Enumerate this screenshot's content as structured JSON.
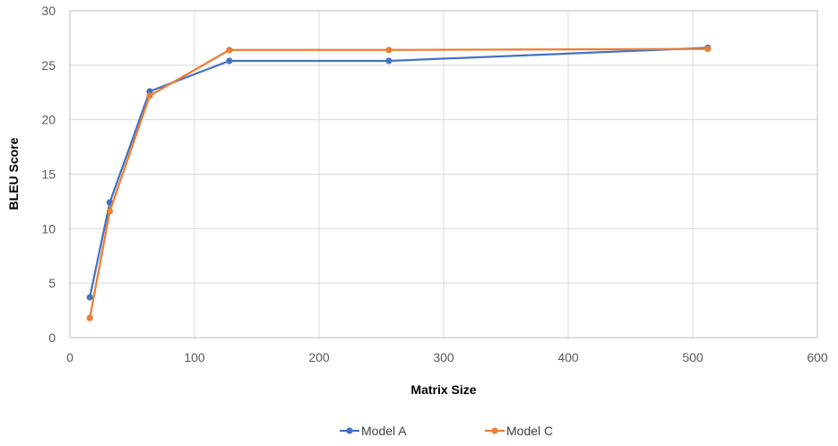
{
  "chart_data": {
    "type": "line",
    "title": "",
    "xlabel": "Matrix Size",
    "ylabel": "BLEU Score",
    "xlim": [
      0,
      600
    ],
    "ylim": [
      0,
      30
    ],
    "xticks": [
      0,
      100,
      200,
      300,
      400,
      500,
      600
    ],
    "yticks": [
      0,
      5,
      10,
      15,
      20,
      25,
      30
    ],
    "grid": true,
    "legend_position": "bottom",
    "series": [
      {
        "name": "Model A",
        "color": "#4472C4",
        "x": [
          16,
          32,
          64,
          128,
          256,
          512
        ],
        "y": [
          3.7,
          12.4,
          22.6,
          25.4,
          25.4,
          26.6
        ]
      },
      {
        "name": "Model C",
        "color": "#ED7D31",
        "x": [
          16,
          32,
          64,
          128,
          256,
          512
        ],
        "y": [
          1.8,
          11.6,
          22.2,
          26.4,
          26.4,
          26.5
        ]
      }
    ]
  }
}
